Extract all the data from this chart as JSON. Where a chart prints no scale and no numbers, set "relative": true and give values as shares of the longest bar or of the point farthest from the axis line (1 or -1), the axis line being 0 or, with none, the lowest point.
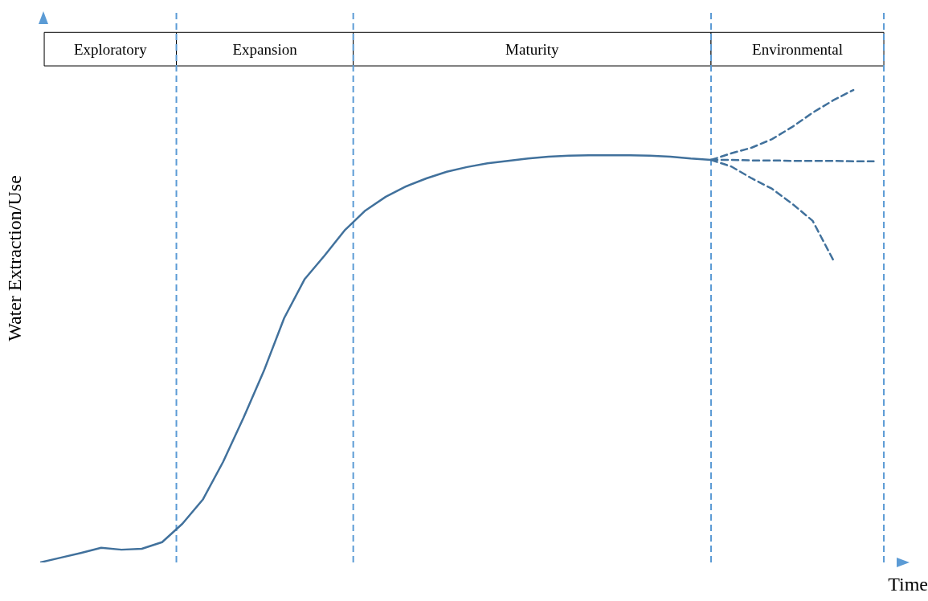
{
  "chart_data": {
    "type": "line",
    "relative": true,
    "xlabel": "Time",
    "ylabel": "Water Extraction/Use",
    "grid": false,
    "categories": [
      null,
      null,
      null,
      null,
      null,
      null,
      null,
      null,
      null,
      null,
      null,
      null,
      null,
      null,
      null,
      null,
      null,
      null,
      null,
      null,
      null,
      null,
      null,
      null,
      null,
      null,
      null,
      null,
      null,
      null,
      null,
      null,
      null,
      null,
      null,
      null,
      null,
      null,
      null,
      null,
      null,
      null,
      null,
      null
    ],
    "series": [
      {
        "color": "#41719c",
        "line_style": "solid",
        "values": [
          0,
          0.01,
          0.02,
          0.031,
          0.027,
          0.029,
          0.043,
          0.082,
          0.133,
          0.213,
          0.306,
          0.405,
          0.517,
          0.599,
          0.65,
          0.704,
          0.745,
          0.774,
          0.796,
          0.813,
          0.827,
          0.837,
          0.845,
          0.85,
          0.855,
          0.859,
          0.861,
          0.862,
          0.862,
          0.862,
          0.861,
          0.859,
          0.855,
          0.852,
          null,
          null,
          null,
          null,
          null,
          null,
          null,
          null,
          null,
          null
        ]
      },
      {
        "color": "#41719c",
        "line_style": "dashed",
        "values": [
          null,
          null,
          null,
          null,
          null,
          null,
          null,
          null,
          null,
          null,
          null,
          null,
          null,
          null,
          null,
          null,
          null,
          null,
          null,
          null,
          null,
          null,
          null,
          null,
          null,
          null,
          null,
          null,
          null,
          null,
          null,
          null,
          null,
          0.852,
          0.866,
          0.878,
          0.896,
          0.922,
          0.952,
          0.978,
          1,
          null,
          null,
          null
        ]
      },
      {
        "color": "#41719c",
        "line_style": "dashed",
        "values": [
          null,
          null,
          null,
          null,
          null,
          null,
          null,
          null,
          null,
          null,
          null,
          null,
          null,
          null,
          null,
          null,
          null,
          null,
          null,
          null,
          null,
          null,
          null,
          null,
          null,
          null,
          null,
          null,
          null,
          null,
          null,
          null,
          null,
          0.852,
          0.852,
          0.851,
          0.851,
          0.85,
          0.85,
          0.85,
          0.849,
          0.849,
          null,
          null
        ]
      },
      {
        "color": "#41719c",
        "line_style": "dashed",
        "values": [
          null,
          null,
          null,
          null,
          null,
          null,
          null,
          null,
          null,
          null,
          null,
          null,
          null,
          null,
          null,
          null,
          null,
          null,
          null,
          null,
          null,
          null,
          null,
          null,
          null,
          null,
          null,
          null,
          null,
          null,
          null,
          null,
          null,
          0.852,
          0.838,
          0.813,
          0.791,
          0.759,
          0.723,
          0.641,
          null,
          null,
          null,
          null
        ]
      }
    ],
    "annotations": [
      "Exploratory",
      "Expansion",
      "Maturity",
      "Environmental"
    ]
  }
}
